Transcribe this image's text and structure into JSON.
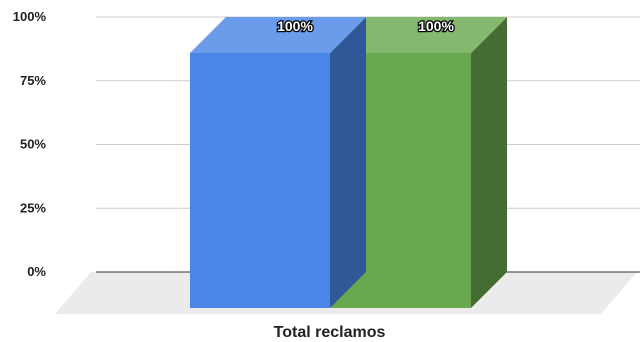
{
  "chart_data": {
    "type": "bar",
    "style": "3d-clustered",
    "categories": [
      "Total reclamos"
    ],
    "series": [
      {
        "values": [
          100
        ],
        "color": "#4a86e8",
        "data_label": "100%"
      },
      {
        "values": [
          100
        ],
        "color": "#6aa84f",
        "data_label": "100%"
      }
    ],
    "y_ticks": [
      "0%",
      "25%",
      "50%",
      "75%",
      "100%"
    ],
    "ylim": [
      0,
      100
    ],
    "y_format": "percent",
    "grid": true,
    "legend": "none"
  }
}
